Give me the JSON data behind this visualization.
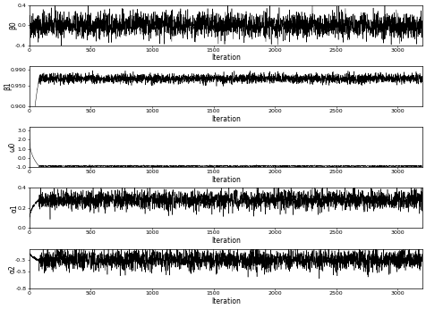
{
  "n_iter": 3200,
  "burn_in": 80,
  "subplots": [
    {
      "ylabel": "β0",
      "ylim": [
        -0.4,
        0.4
      ],
      "yticks": [
        -0.4,
        0.0,
        0.4
      ],
      "ytick_labels": [
        "-0.4",
        "0.0",
        "0.4"
      ],
      "mean": 0.0,
      "std": 0.13,
      "has_burnin": false,
      "burnin_start_val": 0.0,
      "burnin_end_val": 0.0
    },
    {
      "ylabel": "β1",
      "ylim": [
        0.9,
        0.998
      ],
      "yticks": [
        0.9,
        0.95,
        0.99
      ],
      "ytick_labels": [
        "0.900",
        "0.950",
        "0.990"
      ],
      "mean": 0.968,
      "std": 0.006,
      "has_burnin": true,
      "burnin_start_val": 0.5,
      "burnin_end_val": 0.968
    },
    {
      "ylabel": "ω0",
      "ylim": [
        -1.0,
        3.4
      ],
      "yticks": [
        -1.0,
        0.0,
        1.0,
        2.0,
        3.0
      ],
      "ytick_labels": [
        "-1.0",
        "0.0",
        "1.0",
        "2.0",
        "3.0"
      ],
      "mean": -0.92,
      "std": 0.04,
      "has_burnin": true,
      "burnin_start_val": 3.2,
      "burnin_end_val": -0.92
    },
    {
      "ylabel": "α1",
      "ylim": [
        0.0,
        0.4
      ],
      "yticks": [
        0.0,
        0.2,
        0.4
      ],
      "ytick_labels": [
        "0.0",
        "0.2",
        "0.4"
      ],
      "mean": 0.28,
      "std": 0.05,
      "has_burnin": true,
      "burnin_start_val": 0.0,
      "burnin_end_val": 0.28
    },
    {
      "ylabel": "α2",
      "ylim": [
        -0.8,
        -0.1
      ],
      "yticks": [
        -0.8,
        -0.5,
        -0.3
      ],
      "ytick_labels": [
        "-0.8",
        "-0.5",
        "-0.3"
      ],
      "mean": -0.3,
      "std": 0.09,
      "has_burnin": true,
      "burnin_start_val": -0.1,
      "burnin_end_val": -0.3
    }
  ],
  "xlabel": "Iteration",
  "line_color": "black",
  "line_width": 0.35,
  "background_color": "white",
  "tick_fontsize": 4.5,
  "label_fontsize": 5.5,
  "xticks": [
    0,
    500,
    1000,
    1500,
    2000,
    2500,
    3000
  ]
}
